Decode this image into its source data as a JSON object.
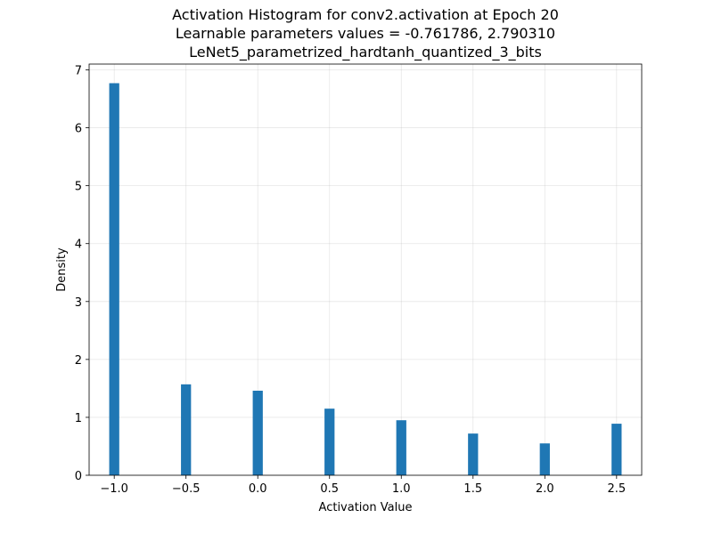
{
  "chart_data": {
    "type": "bar",
    "title_lines": [
      "Activation Histogram for conv2.activation at Epoch 20",
      "Learnable parameters values = -0.761786, 2.790310",
      "LeNet5_parametrized_hardtanh_quantized_3_bits"
    ],
    "xlabel": "Activation Value",
    "ylabel": "Density",
    "xlim": [
      -1.175,
      2.675
    ],
    "ylim": [
      0,
      7.1
    ],
    "xticks": [
      -1.0,
      -0.5,
      0.0,
      0.5,
      1.0,
      1.5,
      2.0,
      2.5
    ],
    "xtick_labels": [
      "−1.0",
      "−0.5",
      "0.0",
      "0.5",
      "1.0",
      "1.5",
      "2.0",
      "2.5"
    ],
    "yticks": [
      0,
      1,
      2,
      3,
      4,
      5,
      6,
      7
    ],
    "ytick_labels": [
      "0",
      "1",
      "2",
      "3",
      "4",
      "5",
      "6",
      "7"
    ],
    "bin_width": 0.07,
    "bars": [
      {
        "x": -1.0,
        "value": 6.77
      },
      {
        "x": -0.5,
        "value": 1.57
      },
      {
        "x": 0.0,
        "value": 1.46
      },
      {
        "x": 0.5,
        "value": 1.15
      },
      {
        "x": 1.0,
        "value": 0.95
      },
      {
        "x": 1.5,
        "value": 0.72
      },
      {
        "x": 2.0,
        "value": 0.55
      },
      {
        "x": 2.5,
        "value": 0.89
      }
    ],
    "bar_color": "#1f77b4",
    "grid": true
  }
}
